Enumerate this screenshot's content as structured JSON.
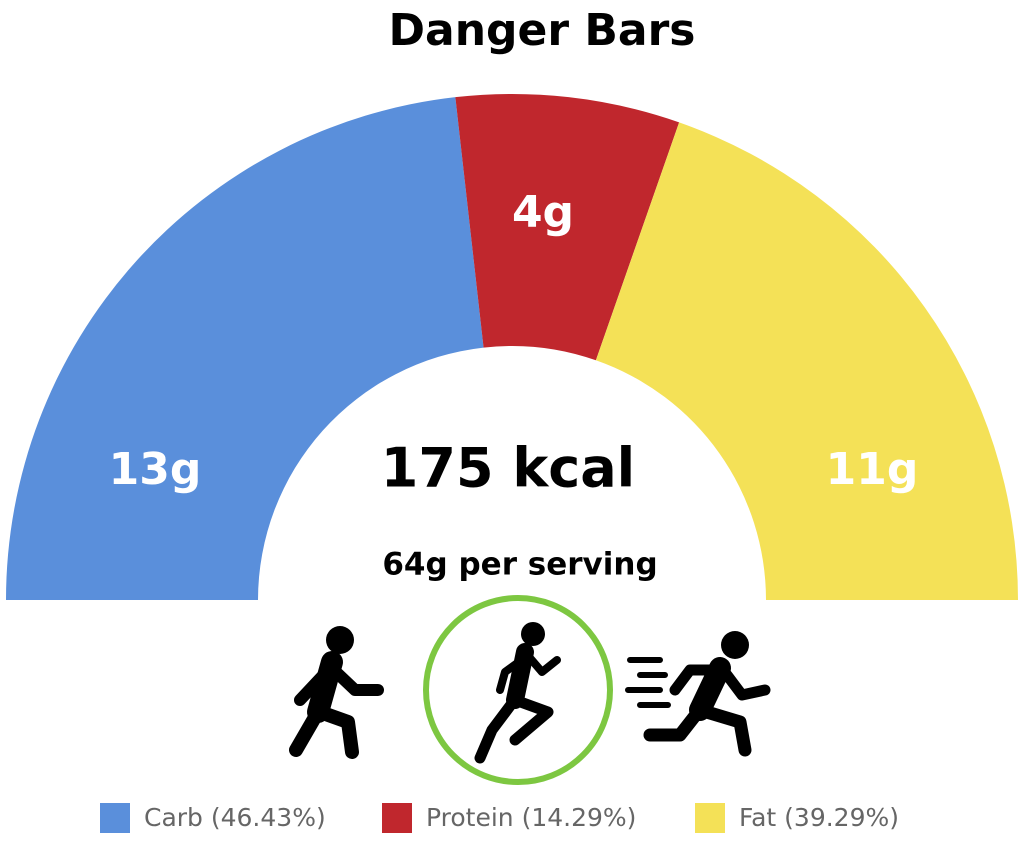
{
  "chart_data": {
    "type": "donut",
    "title": "Danger Bars",
    "half": true,
    "categories": [
      "Carb (46.43%)",
      "Protein (14.29%)",
      "Fat (39.29%)"
    ],
    "values": [
      13,
      4,
      11
    ],
    "value_labels": [
      "13g",
      "4g",
      "11g"
    ],
    "colors": [
      "#5a8fdb",
      "#c0272d",
      "#f4e157"
    ],
    "center_text": "175 kcal",
    "center_subtext": "64g per serving"
  }
}
